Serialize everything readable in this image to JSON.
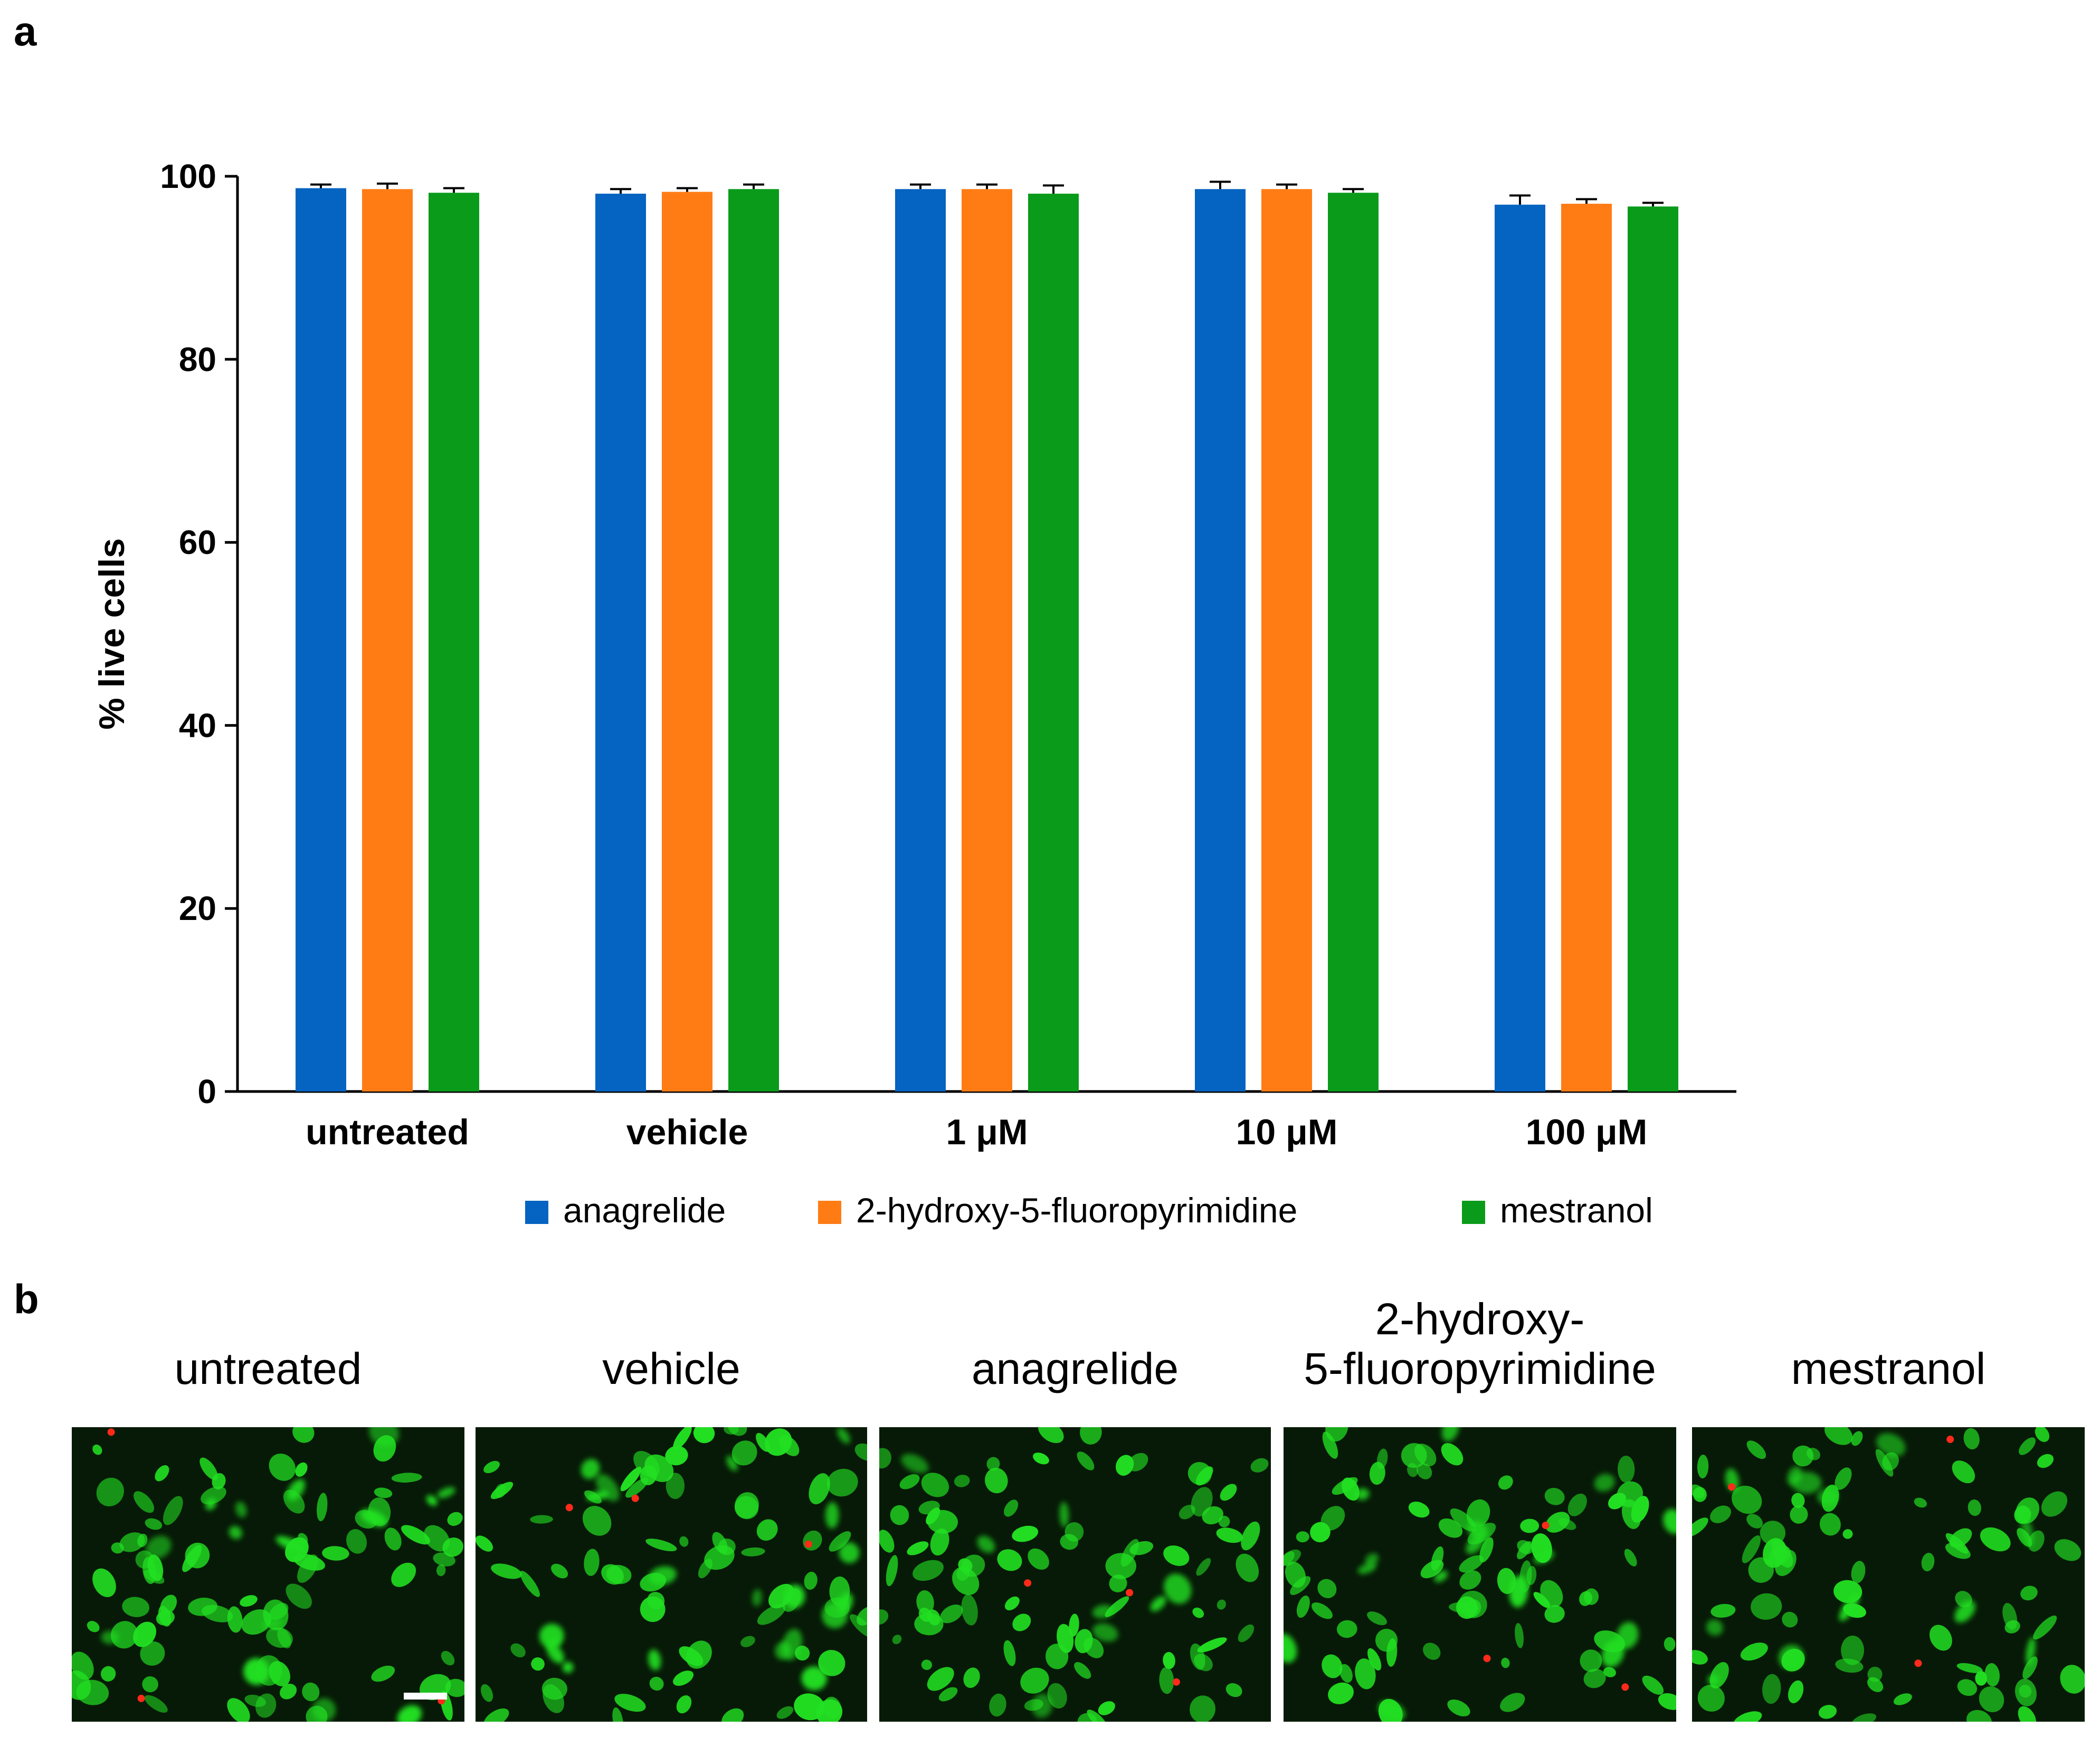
{
  "panels": {
    "a": "a",
    "b": "b"
  },
  "chart_data": {
    "type": "bar",
    "title": "",
    "xlabel": "",
    "ylabel": "% live cells",
    "ylim": [
      0,
      100
    ],
    "yticks": [
      0,
      20,
      40,
      60,
      80,
      100
    ],
    "categories": [
      "untreated",
      "vehicle",
      "1 μM",
      "10 μM",
      "100 μM"
    ],
    "series": [
      {
        "name": "anagrelide",
        "color": "#0563C1",
        "values": [
          98.7,
          98.1,
          98.6,
          98.6,
          96.9
        ],
        "errors": [
          0.4,
          0.5,
          0.5,
          0.8,
          1.0
        ]
      },
      {
        "name": "2-hydroxy-5-fluoropyrimidine",
        "color": "#FF7C15",
        "values": [
          98.6,
          98.3,
          98.6,
          98.6,
          97.0
        ],
        "errors": [
          0.6,
          0.4,
          0.5,
          0.5,
          0.5
        ]
      },
      {
        "name": "mestranol",
        "color": "#0A9B1B",
        "values": [
          98.2,
          98.6,
          98.1,
          98.2,
          96.7
        ],
        "errors": [
          0.5,
          0.5,
          0.9,
          0.4,
          0.4
        ]
      }
    ],
    "error_bars": true,
    "grid": false,
    "legend_position": "bottom"
  },
  "micrographs": [
    {
      "label_lines": [
        "untreated"
      ],
      "scale_bar": true
    },
    {
      "label_lines": [
        "vehicle"
      ],
      "scale_bar": false
    },
    {
      "label_lines": [
        "anagrelide"
      ],
      "scale_bar": false
    },
    {
      "label_lines": [
        "2-hydroxy-",
        "5-fluoropyrimidine"
      ],
      "scale_bar": false
    },
    {
      "label_lines": [
        "mestranol"
      ],
      "scale_bar": false
    }
  ],
  "colors": {
    "live_stain": "#22E022",
    "dead_stain": "#FF2A1A",
    "background": "#071A07"
  }
}
